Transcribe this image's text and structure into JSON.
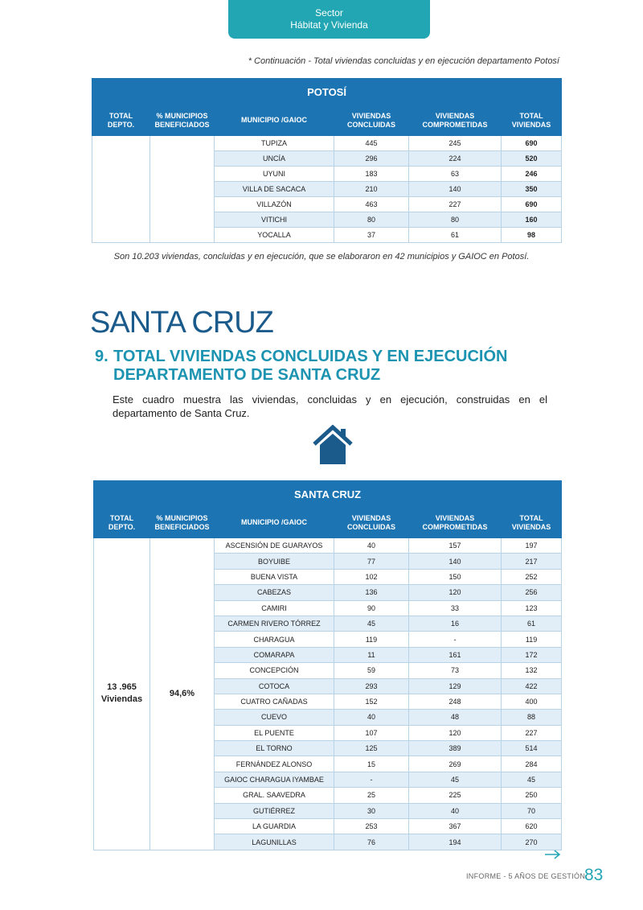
{
  "header": {
    "sector": "Sector",
    "subsector": "Hábitat y Vivienda"
  },
  "note": "* Continuación - Total viviendas concluidas y en ejecución departamento Potosí",
  "table_potosi": {
    "title": "POTOSÍ",
    "columns": [
      [
        "TOTAL",
        "DEPTO."
      ],
      [
        "% MUNICIPIOS",
        "BENEFICIADOS"
      ],
      [
        "MUNICIPIO /GAIOC"
      ],
      [
        "VIVIENDAS",
        "CONCLUIDAS"
      ],
      [
        "VIVIENDAS",
        "COMPROMETIDAS"
      ],
      [
        "TOTAL",
        "VIVIENDAS"
      ]
    ],
    "rows": [
      [
        "TUPIZA",
        445,
        245,
        690
      ],
      [
        "UNCÍA",
        296,
        224,
        520
      ],
      [
        "UYUNI",
        183,
        63,
        246
      ],
      [
        "VILLA DE SACACA",
        210,
        140,
        350
      ],
      [
        "VILLAZÓN",
        463,
        227,
        690
      ],
      [
        "VITICHI",
        80,
        80,
        160
      ],
      [
        "YOCALLA",
        37,
        61,
        98
      ]
    ]
  },
  "summary": "Son 10.203 viviendas, concluidas y en ejecución, que se elaboraron en 42 municipios y GAIOC en Potosí.",
  "section_title": "SANTA CRUZ",
  "heading": {
    "number": "9.",
    "lines": [
      "TOTAL VIVIENDAS CONCLUIDAS Y EN EJECUCIÓN",
      "DEPARTAMENTO DE SANTA CRUZ"
    ]
  },
  "description": "Este cuadro muestra las viviendas, concluidas y en ejecución, construidas en el departamento de Santa Cruz.",
  "table_santa_cruz": {
    "title": "SANTA CRUZ",
    "columns": [
      [
        "TOTAL",
        "DEPTO."
      ],
      [
        "% MUNICIPIOS",
        "BENEFICIADOS"
      ],
      [
        "MUNICIPIO /GAIOC"
      ],
      [
        "VIVIENDAS",
        "CONCLUIDAS"
      ],
      [
        "VIVIENDAS",
        "COMPROMETIDAS"
      ],
      [
        "TOTAL",
        "VIVIENDAS"
      ]
    ],
    "total_depto": [
      "13 .965",
      "Viviendas"
    ],
    "percent": "94,6%",
    "rows": [
      [
        "ASCENSIÓN DE GUARAYOS",
        40,
        157,
        197
      ],
      [
        "BOYUIBE",
        77,
        140,
        217
      ],
      [
        "BUENA VISTA",
        102,
        150,
        252
      ],
      [
        "CABEZAS",
        136,
        120,
        256
      ],
      [
        "CAMIRI",
        90,
        33,
        123
      ],
      [
        "CARMEN RIVERO TÓRREZ",
        45,
        16,
        61
      ],
      [
        "CHARAGUA",
        119,
        "-",
        119
      ],
      [
        "COMARAPA",
        11,
        161,
        172
      ],
      [
        "CONCEPCIÓN",
        59,
        73,
        132
      ],
      [
        "COTOCA",
        293,
        129,
        422
      ],
      [
        "CUATRO CAÑADAS",
        152,
        248,
        400
      ],
      [
        "CUEVO",
        40,
        48,
        88
      ],
      [
        "EL PUENTE",
        107,
        120,
        227
      ],
      [
        "EL TORNO",
        125,
        389,
        514
      ],
      [
        "FERNÁNDEZ ALONSO",
        15,
        269,
        284
      ],
      [
        "GAIOC CHARAGUA IYAMBAE",
        "-",
        45,
        45
      ],
      [
        "GRAL. SAAVEDRA",
        25,
        225,
        250
      ],
      [
        "GUTIÉRREZ",
        30,
        40,
        70
      ],
      [
        "LA GUARDIA",
        253,
        367,
        620
      ],
      [
        "LAGUNILLAS",
        76,
        194,
        270
      ]
    ]
  },
  "footer": {
    "report": "INFORME - 5 AÑOS DE GESTIÓN",
    "page": "83"
  }
}
